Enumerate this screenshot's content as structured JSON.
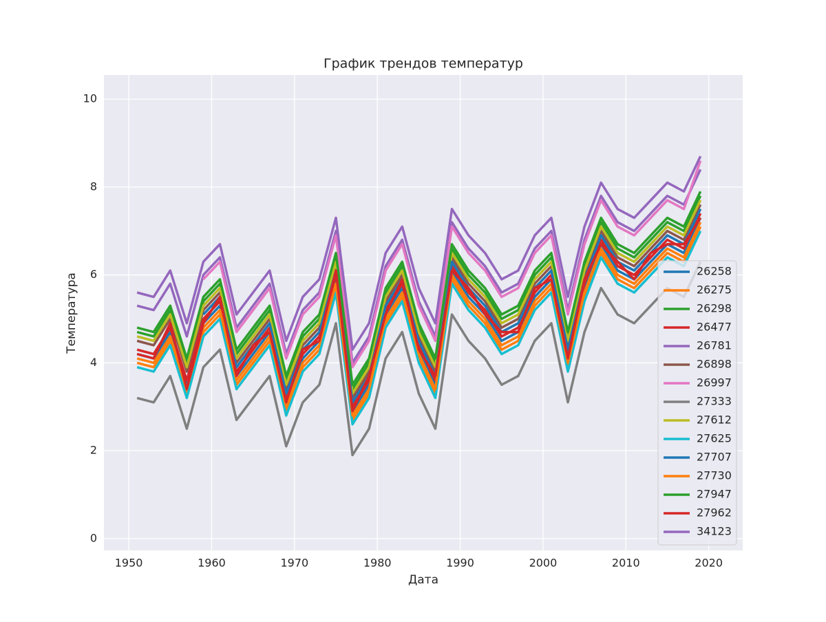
{
  "chart_data": {
    "type": "line",
    "title": "График трендов температур",
    "x_label": "Дата",
    "y_label": "Температура",
    "xlim": [
      1947,
      2024.1
    ],
    "xticks": [
      1950,
      1960,
      1970,
      1980,
      1990,
      2000,
      2010,
      2020
    ],
    "ylim": [
      -0.27,
      10.55
    ],
    "yticks": [
      0,
      2,
      4,
      6,
      8,
      10
    ],
    "grid": true,
    "legend": "lower right",
    "x": [
      1951,
      1953,
      1955,
      1957,
      1959,
      1961,
      1963,
      1965,
      1967,
      1969,
      1971,
      1973,
      1975,
      1977,
      1979,
      1981,
      1983,
      1985,
      1987,
      1989,
      1991,
      1993,
      1995,
      1997,
      1999,
      2001,
      2003,
      2005,
      2007,
      2009,
      2011,
      2013,
      2015,
      2017,
      2019
    ],
    "series": [
      {
        "name": "26258",
        "color": "#1f77b4",
        "values": [
          4.2,
          4.1,
          4.7,
          3.5,
          4.9,
          5.3,
          3.7,
          4.2,
          4.7,
          3.1,
          4.1,
          4.5,
          5.9,
          2.9,
          3.5,
          5.1,
          5.7,
          4.3,
          3.5,
          6.1,
          5.5,
          5.1,
          4.5,
          4.7,
          5.5,
          5.9,
          4.1,
          5.7,
          6.7,
          6.1,
          5.9,
          6.3,
          6.7,
          6.5,
          7.3
        ]
      },
      {
        "name": "26275",
        "color": "#ff7f0e",
        "values": [
          4.0,
          3.9,
          4.5,
          3.3,
          4.7,
          5.1,
          3.5,
          4.0,
          4.5,
          2.9,
          3.9,
          4.3,
          5.7,
          2.7,
          3.3,
          4.9,
          5.5,
          4.1,
          3.3,
          5.9,
          5.3,
          4.9,
          4.3,
          4.5,
          5.3,
          5.7,
          3.9,
          5.5,
          6.5,
          5.9,
          5.7,
          6.1,
          6.5,
          6.3,
          7.1
        ]
      },
      {
        "name": "26298",
        "color": "#2ca02c",
        "values": [
          4.7,
          4.6,
          5.2,
          4.0,
          5.4,
          5.8,
          4.2,
          4.7,
          5.2,
          3.6,
          4.6,
          5.0,
          6.4,
          3.4,
          4.0,
          5.6,
          6.2,
          4.8,
          4.0,
          6.6,
          6.0,
          5.6,
          5.0,
          5.2,
          6.0,
          6.4,
          4.6,
          6.2,
          7.2,
          6.6,
          6.4,
          6.8,
          7.2,
          7.0,
          7.8
        ]
      },
      {
        "name": "26477",
        "color": "#d62728",
        "values": [
          4.3,
          4.2,
          4.8,
          3.6,
          5.0,
          5.4,
          3.8,
          4.3,
          4.8,
          3.2,
          4.2,
          4.6,
          6.0,
          3.0,
          3.6,
          5.2,
          5.8,
          4.4,
          3.6,
          6.2,
          5.6,
          5.2,
          4.6,
          4.8,
          5.6,
          6.0,
          4.2,
          5.8,
          6.8,
          6.2,
          6.0,
          6.4,
          6.8,
          6.6,
          7.4
        ]
      },
      {
        "name": "26781",
        "color": "#9467bd",
        "values": [
          5.3,
          5.2,
          5.8,
          4.6,
          6.0,
          6.4,
          4.8,
          5.3,
          5.8,
          4.2,
          5.2,
          5.6,
          7.0,
          4.0,
          4.6,
          6.2,
          6.8,
          5.4,
          4.6,
          7.2,
          6.6,
          6.2,
          5.6,
          5.8,
          6.6,
          7.0,
          5.2,
          6.8,
          7.8,
          7.2,
          7.0,
          7.4,
          7.8,
          7.6,
          8.4
        ]
      },
      {
        "name": "26898",
        "color": "#8c564b",
        "values": [
          4.5,
          4.4,
          5.0,
          3.8,
          5.2,
          5.6,
          4.0,
          4.5,
          5.0,
          3.4,
          4.4,
          4.8,
          6.2,
          3.2,
          3.8,
          5.4,
          6.0,
          4.6,
          3.8,
          6.4,
          5.8,
          5.4,
          4.8,
          5.0,
          5.8,
          6.2,
          4.4,
          6.0,
          7.0,
          6.4,
          6.2,
          6.6,
          7.0,
          6.8,
          7.6
        ]
      },
      {
        "name": "26997",
        "color": "#e377c2",
        "values": [
          null,
          null,
          null,
          null,
          5.9,
          6.3,
          4.7,
          5.2,
          5.7,
          4.1,
          5.1,
          5.5,
          6.9,
          3.9,
          4.5,
          6.1,
          6.7,
          5.3,
          4.5,
          7.1,
          6.5,
          6.1,
          5.5,
          5.7,
          6.5,
          6.9,
          5.1,
          6.7,
          7.7,
          7.1,
          6.9,
          7.3,
          7.7,
          7.5,
          8.6
        ]
      },
      {
        "name": "27333",
        "color": "#7f7f7f",
        "values": [
          3.2,
          3.1,
          3.7,
          2.5,
          3.9,
          4.3,
          2.7,
          3.2,
          3.7,
          2.1,
          3.1,
          3.5,
          4.9,
          1.9,
          2.5,
          4.1,
          4.7,
          3.3,
          2.5,
          5.1,
          4.5,
          4.1,
          3.5,
          3.7,
          4.5,
          4.9,
          3.1,
          4.7,
          5.7,
          5.1,
          4.9,
          5.3,
          5.7,
          5.5,
          6.3
        ]
      },
      {
        "name": "27612",
        "color": "#bcbd22",
        "values": [
          4.6,
          4.5,
          5.1,
          3.9,
          5.3,
          5.7,
          4.1,
          4.6,
          5.1,
          3.5,
          4.5,
          4.9,
          6.3,
          3.3,
          3.9,
          5.5,
          6.1,
          4.7,
          3.9,
          6.5,
          5.9,
          5.5,
          4.9,
          5.1,
          5.9,
          6.3,
          4.5,
          6.1,
          7.1,
          6.5,
          6.3,
          6.7,
          7.1,
          6.9,
          7.7
        ]
      },
      {
        "name": "27625",
        "color": "#17becf",
        "values": [
          3.9,
          3.8,
          4.4,
          3.2,
          4.6,
          5.0,
          3.4,
          3.9,
          4.4,
          2.8,
          3.8,
          4.2,
          5.6,
          2.6,
          3.2,
          4.8,
          5.4,
          4.0,
          3.2,
          5.8,
          5.2,
          4.8,
          4.2,
          4.4,
          5.2,
          5.6,
          3.8,
          5.4,
          6.4,
          5.8,
          5.6,
          6.0,
          6.4,
          6.2,
          7.0
        ]
      },
      {
        "name": "27707",
        "color": "#1f77b4",
        "values": [
          null,
          null,
          null,
          null,
          5.1,
          5.5,
          3.9,
          4.4,
          4.9,
          3.3,
          4.3,
          4.7,
          6.1,
          3.1,
          3.7,
          5.3,
          5.9,
          4.5,
          3.7,
          6.3,
          5.7,
          5.3,
          4.7,
          4.9,
          5.7,
          6.1,
          4.3,
          5.9,
          6.9,
          6.3,
          6.1,
          6.5,
          6.9,
          6.7,
          7.5
        ]
      },
      {
        "name": "27730",
        "color": "#ff7f0e",
        "values": [
          4.1,
          4.0,
          4.6,
          3.4,
          4.8,
          5.2,
          3.6,
          4.1,
          4.6,
          3.0,
          4.0,
          4.4,
          5.8,
          2.8,
          3.4,
          5.0,
          5.6,
          4.2,
          3.4,
          6.0,
          5.4,
          5.0,
          4.4,
          4.6,
          5.4,
          5.8,
          4.0,
          5.6,
          6.6,
          6.0,
          5.8,
          6.2,
          6.6,
          6.4,
          7.2
        ]
      },
      {
        "name": "27947",
        "color": "#2ca02c",
        "values": [
          4.8,
          4.7,
          5.3,
          4.1,
          5.5,
          5.9,
          4.3,
          4.8,
          5.3,
          3.7,
          4.7,
          5.1,
          6.5,
          3.5,
          4.1,
          5.7,
          6.3,
          4.9,
          4.1,
          6.7,
          6.1,
          5.7,
          5.1,
          5.3,
          6.1,
          6.5,
          4.7,
          6.3,
          7.3,
          6.7,
          6.5,
          6.9,
          7.3,
          7.1,
          7.9
        ]
      },
      {
        "name": "27962",
        "color": "#d62728",
        "values": [
          4.2,
          4.1,
          4.9,
          3.4,
          4.9,
          5.5,
          3.7,
          4.4,
          4.7,
          3.1,
          4.3,
          4.5,
          6.1,
          2.9,
          3.7,
          5.1,
          5.9,
          4.3,
          3.7,
          6.1,
          5.7,
          5.1,
          4.7,
          4.7,
          5.7,
          5.9,
          4.1,
          5.9,
          6.7,
          6.3,
          5.9,
          6.5,
          6.7,
          6.7,
          7.3
        ]
      },
      {
        "name": "34123",
        "color": "#9467bd",
        "values": [
          5.6,
          5.5,
          6.1,
          4.9,
          6.3,
          6.7,
          5.1,
          5.6,
          6.1,
          4.5,
          5.5,
          5.9,
          7.3,
          4.3,
          4.9,
          6.5,
          7.1,
          5.7,
          4.9,
          7.5,
          6.9,
          6.5,
          5.9,
          6.1,
          6.9,
          7.3,
          5.5,
          7.1,
          8.1,
          7.5,
          7.3,
          7.7,
          8.1,
          7.9,
          8.7
        ]
      }
    ]
  }
}
